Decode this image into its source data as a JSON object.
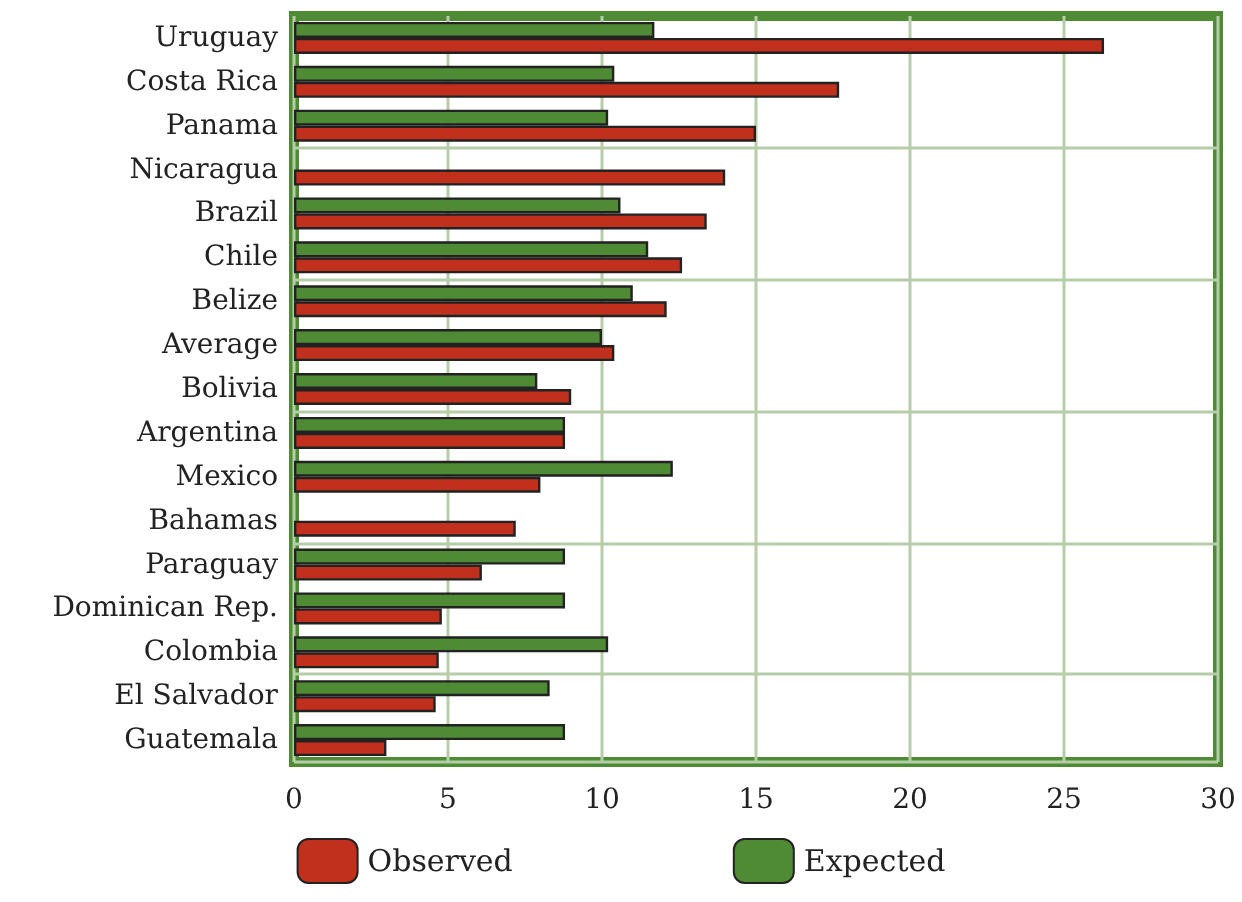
{
  "chart_data": {
    "type": "bar",
    "orientation": "horizontal",
    "categories": [
      "Uruguay",
      "Costa Rica",
      "Panama",
      "Nicaragua",
      "Brazil",
      "Chile",
      "Belize",
      "Average",
      "Bolivia",
      "Argentina",
      "Mexico",
      "Bahamas",
      "Paraguay",
      "Dominican Rep.",
      "Colombia",
      "El Salvador",
      "Guatemala"
    ],
    "series": [
      {
        "name": "Observed",
        "color": "#c0301c",
        "values": [
          26.3,
          17.7,
          15.0,
          14.0,
          13.4,
          12.6,
          12.1,
          10.4,
          9.0,
          8.8,
          8.0,
          7.2,
          6.1,
          4.8,
          4.7,
          4.6,
          3.0
        ]
      },
      {
        "name": "Expected",
        "color": "#4f8a35",
        "values": [
          11.7,
          10.4,
          10.2,
          null,
          10.6,
          11.5,
          11.0,
          10.0,
          7.9,
          8.8,
          12.3,
          null,
          8.8,
          8.8,
          10.2,
          8.3,
          8.8
        ]
      }
    ],
    "xlim": [
      0,
      30
    ],
    "xticks": [
      0,
      5,
      10,
      15,
      20,
      25,
      30
    ],
    "grid": true,
    "legend": "bottom"
  }
}
